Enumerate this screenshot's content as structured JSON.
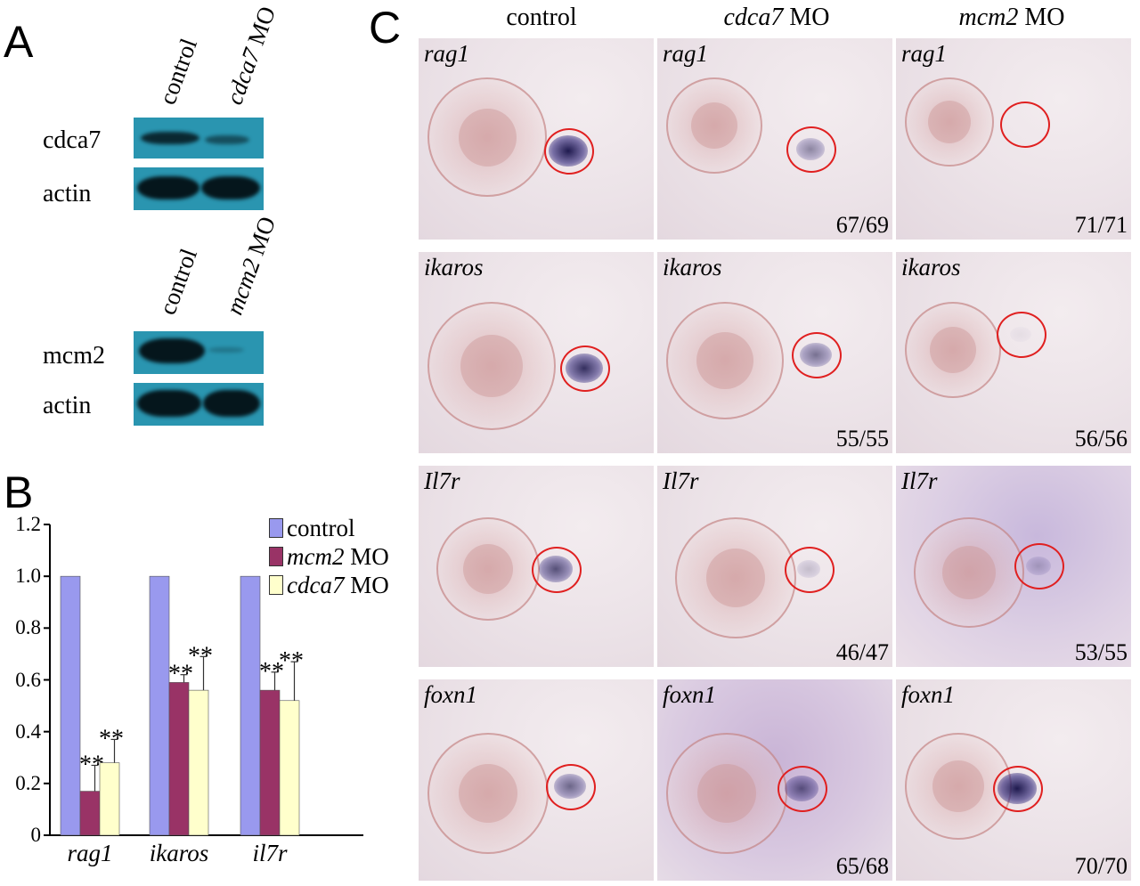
{
  "panels": {
    "a": "A",
    "b": "B",
    "c": "C"
  },
  "panel_a": {
    "blot1": {
      "columns": [
        {
          "text": "control",
          "italic": false
        },
        {
          "text": "cdca7",
          "suffix": " MO",
          "italic": true
        }
      ],
      "rows": [
        "cdca7",
        "actin"
      ]
    },
    "blot2": {
      "columns": [
        {
          "text": "control",
          "italic": false
        },
        {
          "text": "mcm2",
          "suffix": " MO",
          "italic": true
        }
      ],
      "rows": [
        "mcm2",
        "actin"
      ]
    }
  },
  "chart_data": {
    "type": "bar",
    "categories": [
      "rag1",
      "ikaros",
      "il7r"
    ],
    "series": [
      {
        "name": "control",
        "color": "#9999ee",
        "values": [
          1.0,
          1.0,
          1.0
        ],
        "errors": [
          0,
          0,
          0
        ],
        "sig": [
          "",
          "",
          ""
        ]
      },
      {
        "name": "mcm2 MO",
        "color": "#993366",
        "values": [
          0.17,
          0.59,
          0.56
        ],
        "errors": [
          0.1,
          0.03,
          0.07
        ],
        "sig": [
          "**",
          "**",
          "**"
        ]
      },
      {
        "name": "cdca7 MO",
        "color": "#ffffcc",
        "values": [
          0.28,
          0.56,
          0.52
        ],
        "errors": [
          0.09,
          0.13,
          0.15
        ],
        "sig": [
          "**",
          "**",
          "**"
        ]
      }
    ],
    "ylim": [
      0,
      1.2
    ],
    "yticks": [
      "0",
      "0.2",
      "0.4",
      "0.6",
      "0.8",
      "1.0",
      "1.2"
    ],
    "legend": [
      {
        "italic": "",
        "text": "control"
      },
      {
        "italic": "mcm2",
        "text": " MO"
      },
      {
        "italic": "cdca7",
        "text": " MO"
      }
    ],
    "legend_position": "top-right"
  },
  "panel_c": {
    "headers": [
      {
        "italic": "",
        "text": "control"
      },
      {
        "italic": "cdca7",
        "text": " MO"
      },
      {
        "italic": "mcm2",
        "text": " MO"
      }
    ],
    "rows": [
      {
        "gene": "rag1",
        "counts": [
          "",
          "67/69",
          "71/71"
        ],
        "stain": [
          0.95,
          0.45,
          0.0
        ]
      },
      {
        "gene": "ikaros",
        "counts": [
          "",
          "55/55",
          "56/56"
        ],
        "stain": [
          0.85,
          0.55,
          0.05
        ]
      },
      {
        "gene": "Il7r",
        "counts": [
          "",
          "46/47",
          "53/55"
        ],
        "stain": [
          0.7,
          0.2,
          0.25
        ]
      },
      {
        "gene": "foxn1",
        "counts": [
          "",
          "65/68",
          "70/70"
        ],
        "stain": [
          0.6,
          0.65,
          0.95
        ]
      }
    ]
  }
}
